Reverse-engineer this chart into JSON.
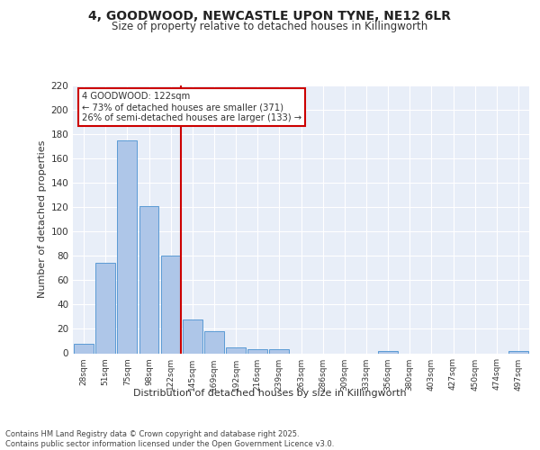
{
  "title1": "4, GOODWOOD, NEWCASTLE UPON TYNE, NE12 6LR",
  "title2": "Size of property relative to detached houses in Killingworth",
  "xlabel": "Distribution of detached houses by size in Killingworth",
  "ylabel": "Number of detached properties",
  "bin_labels": [
    "28sqm",
    "51sqm",
    "75sqm",
    "98sqm",
    "122sqm",
    "145sqm",
    "169sqm",
    "192sqm",
    "216sqm",
    "239sqm",
    "263sqm",
    "286sqm",
    "309sqm",
    "333sqm",
    "356sqm",
    "380sqm",
    "403sqm",
    "427sqm",
    "450sqm",
    "474sqm",
    "497sqm"
  ],
  "bar_values": [
    8,
    74,
    175,
    121,
    80,
    28,
    18,
    5,
    3,
    3,
    0,
    0,
    0,
    0,
    2,
    0,
    0,
    0,
    0,
    0,
    2
  ],
  "bar_color": "#aec6e8",
  "bar_edge_color": "#5b9bd5",
  "vline_bin_index": 4,
  "vline_color": "#cc0000",
  "annotation_line1": "4 GOODWOOD: 122sqm",
  "annotation_line2": "← 73% of detached houses are smaller (371)",
  "annotation_line3": "26% of semi-detached houses are larger (133) →",
  "annotation_box_color": "#ffffff",
  "annotation_box_edge": "#cc0000",
  "bg_color": "#e8eef8",
  "grid_color": "#ffffff",
  "footer_text": "Contains HM Land Registry data © Crown copyright and database right 2025.\nContains public sector information licensed under the Open Government Licence v3.0.",
  "ylim": [
    0,
    220
  ],
  "yticks": [
    0,
    20,
    40,
    60,
    80,
    100,
    120,
    140,
    160,
    180,
    200,
    220
  ]
}
